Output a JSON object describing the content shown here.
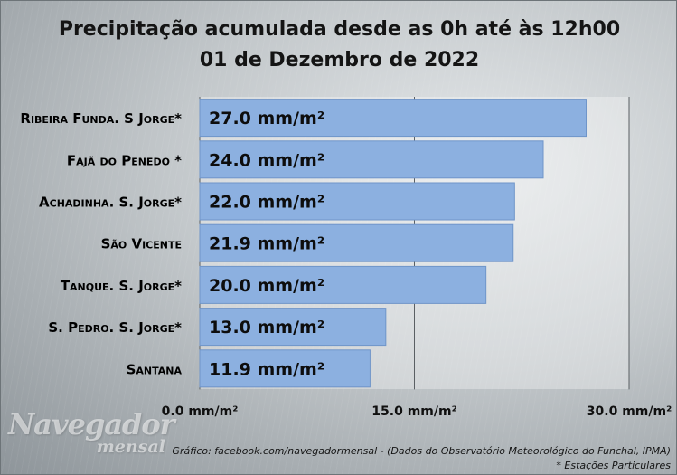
{
  "title_line1": "Precipitação acumulada desde as 0h até às 12h00",
  "title_line2": "01 de Dezembro de 2022",
  "source": "Gráfico: facebook.com/navegadormensal  - (Dados do Observatório Meteorológico do Funchal, IPMA)",
  "note": "* Estações Particulares",
  "watermark": {
    "line1": "Navegador",
    "line2": "mensal"
  },
  "colors": {
    "bar": "#8cb0e0",
    "bar_border": "#6f95c9",
    "gridline": "#5a5f63"
  },
  "chart_data": {
    "type": "bar",
    "orientation": "horizontal",
    "categories": [
      "Ribeira Funda. S Jorge*",
      "Fajã do Penedo *",
      "Achadinha. S. Jorge*",
      "São Vicente",
      "Tanque. S. Jorge*",
      "S. Pedro. S. Jorge*",
      "Santana"
    ],
    "values": [
      27.0,
      24.0,
      22.0,
      21.9,
      20.0,
      13.0,
      11.9
    ],
    "value_labels": [
      "27.0 mm/m²",
      "24.0 mm/m²",
      "22.0 mm/m²",
      "21.9 mm/m²",
      "20.0 mm/m²",
      "13.0 mm/m²",
      "11.9 mm/m²"
    ],
    "xlim": [
      0,
      30
    ],
    "xticks": [
      0,
      15,
      30
    ],
    "xtick_labels": [
      "0.0 mm/m²",
      "15.0 mm/m²",
      "30.0 mm/m²"
    ],
    "grid": true
  }
}
